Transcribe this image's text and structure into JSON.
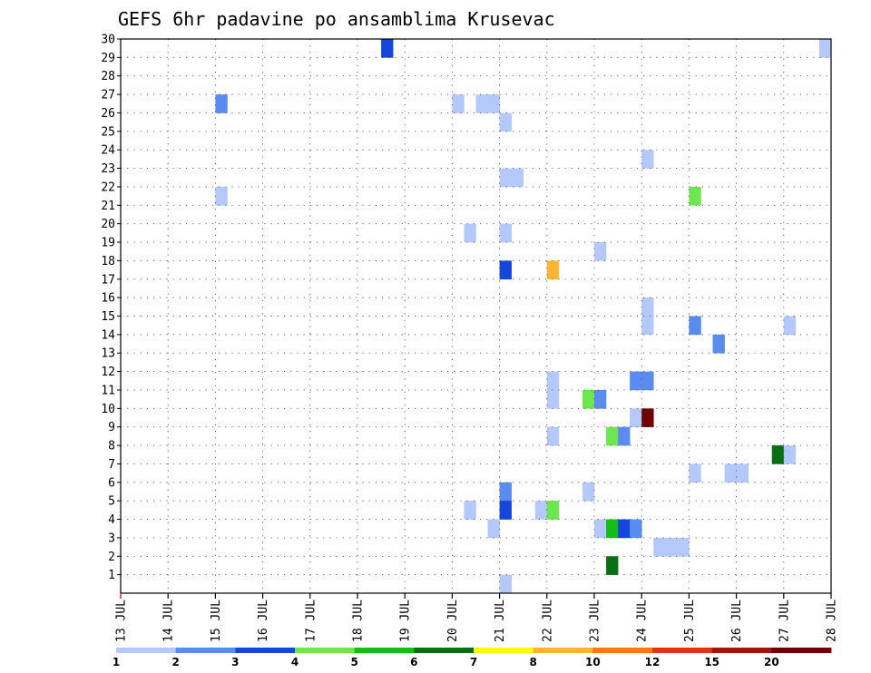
{
  "chart_data": {
    "type": "heatmap",
    "title": "GEFS 6hr padavine po ansamblima Krusevac",
    "x_tick_labels": [
      "13 JUL",
      "14 JUL",
      "15 JUL",
      "16 JUL",
      "17 JUL",
      "18 JUL",
      "19 JUL",
      "20 JUL",
      "21 JUL",
      "22 JUL",
      "23 JUL",
      "24 JUL",
      "25 JUL",
      "26 JUL",
      "27 JUL",
      "28 JUL"
    ],
    "xlim": [
      0,
      60
    ],
    "x_unit": "6-hour steps from 13 JUL 00Z",
    "y_tick_labels": [
      "1",
      "2",
      "3",
      "4",
      "5",
      "6",
      "7",
      "8",
      "9",
      "10",
      "11",
      "12",
      "13",
      "14",
      "15",
      "16",
      "17",
      "18",
      "19",
      "20",
      "21",
      "22",
      "23",
      "24",
      "25",
      "26",
      "27",
      "28",
      "29",
      "30"
    ],
    "ylim": [
      0,
      30
    ],
    "grid": true,
    "colorbar": {
      "labels": [
        "1",
        "2",
        "3",
        "4",
        "5",
        "6",
        "7",
        "8",
        "10",
        "12",
        "15",
        "20"
      ],
      "colors": [
        "#b4c8fa",
        "#5a8cf0",
        "#1446dc",
        "#6ee650",
        "#14be14",
        "#0a6e14",
        "#ffff00",
        "#ffb432",
        "#fa7814",
        "#e63214",
        "#a01414",
        "#6e0000"
      ]
    },
    "cells": [
      {
        "x": 22,
        "y": 30,
        "v": 3
      },
      {
        "x": 59,
        "y": 30,
        "v": 1
      },
      {
        "x": 8,
        "y": 27,
        "v": 2
      },
      {
        "x": 28,
        "y": 27,
        "v": 1
      },
      {
        "x": 30,
        "y": 27,
        "v": 1
      },
      {
        "x": 31,
        "y": 27,
        "v": 1
      },
      {
        "x": 32,
        "y": 26,
        "v": 1
      },
      {
        "x": 44,
        "y": 24,
        "v": 1
      },
      {
        "x": 32,
        "y": 23,
        "v": 1
      },
      {
        "x": 33,
        "y": 23,
        "v": 1
      },
      {
        "x": 8,
        "y": 22,
        "v": 1
      },
      {
        "x": 48,
        "y": 22,
        "v": 4
      },
      {
        "x": 29,
        "y": 20,
        "v": 1
      },
      {
        "x": 32,
        "y": 20,
        "v": 1
      },
      {
        "x": 40,
        "y": 19,
        "v": 1
      },
      {
        "x": 32,
        "y": 18,
        "v": 3
      },
      {
        "x": 36,
        "y": 18,
        "v": 8
      },
      {
        "x": 44,
        "y": 16,
        "v": 1
      },
      {
        "x": 44,
        "y": 15,
        "v": 1
      },
      {
        "x": 48,
        "y": 15,
        "v": 2
      },
      {
        "x": 56,
        "y": 15,
        "v": 1
      },
      {
        "x": 50,
        "y": 14,
        "v": 2
      },
      {
        "x": 36,
        "y": 12,
        "v": 1
      },
      {
        "x": 43,
        "y": 12,
        "v": 2
      },
      {
        "x": 44,
        "y": 12,
        "v": 2
      },
      {
        "x": 36,
        "y": 11,
        "v": 1
      },
      {
        "x": 39,
        "y": 11,
        "v": 4
      },
      {
        "x": 40,
        "y": 11,
        "v": 2
      },
      {
        "x": 43,
        "y": 10,
        "v": 1
      },
      {
        "x": 44,
        "y": 10,
        "v": 20
      },
      {
        "x": 36,
        "y": 9,
        "v": 1
      },
      {
        "x": 41,
        "y": 9,
        "v": 4
      },
      {
        "x": 42,
        "y": 9,
        "v": 2
      },
      {
        "x": 55,
        "y": 8,
        "v": 6
      },
      {
        "x": 56,
        "y": 8,
        "v": 1
      },
      {
        "x": 48,
        "y": 7,
        "v": 1
      },
      {
        "x": 51,
        "y": 7,
        "v": 1
      },
      {
        "x": 52,
        "y": 7,
        "v": 1
      },
      {
        "x": 32,
        "y": 6,
        "v": 2
      },
      {
        "x": 39,
        "y": 6,
        "v": 1
      },
      {
        "x": 29,
        "y": 5,
        "v": 1
      },
      {
        "x": 32,
        "y": 5,
        "v": 3
      },
      {
        "x": 35,
        "y": 5,
        "v": 1
      },
      {
        "x": 36,
        "y": 5,
        "v": 4
      },
      {
        "x": 31,
        "y": 4,
        "v": 1
      },
      {
        "x": 40,
        "y": 4,
        "v": 1
      },
      {
        "x": 41,
        "y": 4,
        "v": 5
      },
      {
        "x": 42,
        "y": 4,
        "v": 3
      },
      {
        "x": 43,
        "y": 4,
        "v": 2
      },
      {
        "x": 45,
        "y": 3,
        "v": 1
      },
      {
        "x": 46,
        "y": 3,
        "v": 1
      },
      {
        "x": 47,
        "y": 3,
        "v": 1
      },
      {
        "x": 41,
        "y": 2,
        "v": 6
      },
      {
        "x": 32,
        "y": 1,
        "v": 1
      }
    ]
  }
}
